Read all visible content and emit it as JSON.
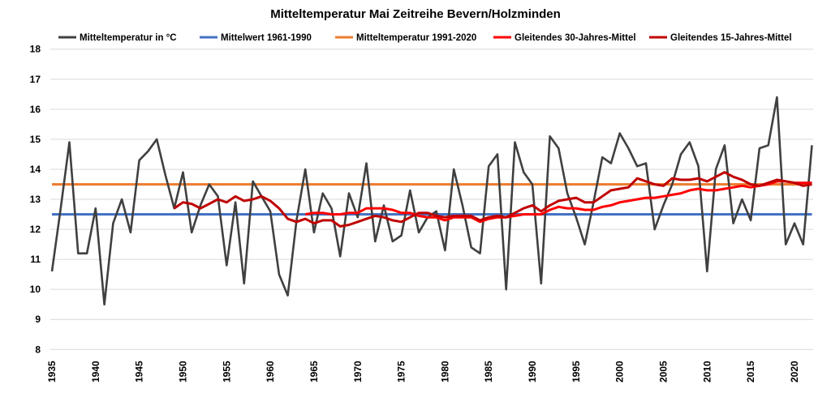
{
  "chart_data": {
    "type": "line",
    "title": "Mitteltemperatur Mai Zeitreihe Bevern/Holzminden",
    "xlabel": "",
    "ylabel": "",
    "xlim": [
      1935,
      2022
    ],
    "ylim": [
      8,
      18
    ],
    "yticks": [
      8,
      9,
      10,
      11,
      12,
      13,
      14,
      15,
      16,
      17,
      18
    ],
    "xticks": [
      1935,
      1940,
      1945,
      1950,
      1955,
      1960,
      1965,
      1970,
      1975,
      1980,
      1985,
      1990,
      1995,
      2000,
      2005,
      2010,
      2015,
      2020
    ],
    "grid": "horizontal",
    "legend_position": "top",
    "series": [
      {
        "name": "Mitteltemperatur in °C",
        "color": "#404040",
        "start_year": 1935,
        "values": [
          10.6,
          12.7,
          14.9,
          11.2,
          11.2,
          12.7,
          9.5,
          12.2,
          13.0,
          11.9,
          14.3,
          14.6,
          15.0,
          13.8,
          12.7,
          13.9,
          11.9,
          12.8,
          13.5,
          13.1,
          10.8,
          12.9,
          10.2,
          13.6,
          13.1,
          12.6,
          10.5,
          9.8,
          12.3,
          14.0,
          11.9,
          13.2,
          12.7,
          11.1,
          13.2,
          12.4,
          14.2,
          11.6,
          12.8,
          11.6,
          11.8,
          13.3,
          11.9,
          12.4,
          12.6,
          11.3,
          14.0,
          12.8,
          11.4,
          11.2,
          14.1,
          14.5,
          10.0,
          14.9,
          13.9,
          13.5,
          10.2,
          15.1,
          14.7,
          13.2,
          12.4,
          11.5,
          12.9,
          14.4,
          14.2,
          15.2,
          14.7,
          14.1,
          14.2,
          12.0,
          12.8,
          13.5,
          14.5,
          14.9,
          14.1,
          10.6,
          14.0,
          14.8,
          12.2,
          13.0,
          12.3,
          14.7,
          14.8,
          16.4,
          11.5,
          12.2,
          11.5,
          14.8
        ]
      },
      {
        "name": "Mittelwert 1961-1990",
        "color": "#4472C4",
        "start_year": 1935,
        "constant": 12.5
      },
      {
        "name": "Mitteltemperatur 1991-2020",
        "color": "#ED7D31",
        "start_year": 1935,
        "constant": 13.5
      },
      {
        "name": "Gleitendes 30-Jahres-Mittel",
        "color": "#FF0000",
        "start_year": 1964,
        "values": [
          12.5,
          12.55,
          12.55,
          12.5,
          12.5,
          12.55,
          12.55,
          12.7,
          12.7,
          12.7,
          12.65,
          12.55,
          12.55,
          12.45,
          12.4,
          12.4,
          12.3,
          12.4,
          12.4,
          12.4,
          12.25,
          12.35,
          12.4,
          12.4,
          12.45,
          12.5,
          12.5,
          12.5,
          12.65,
          12.75,
          12.7,
          12.7,
          12.65,
          12.65,
          12.75,
          12.8,
          12.9,
          12.95,
          13.0,
          13.05,
          13.05,
          13.1,
          13.15,
          13.2,
          13.3,
          13.35,
          13.3,
          13.3,
          13.35,
          13.4,
          13.45,
          13.4,
          13.45,
          13.5,
          13.6,
          13.6,
          13.55,
          13.55,
          13.55
        ]
      },
      {
        "name": "Gleitendes 15-Jahres-Mittel",
        "color": "#C00000",
        "start_year": 1949,
        "values": [
          12.7,
          12.9,
          12.85,
          12.7,
          12.85,
          13.0,
          12.9,
          13.1,
          12.95,
          13.0,
          13.1,
          12.95,
          12.7,
          12.35,
          12.25,
          12.35,
          12.2,
          12.3,
          12.3,
          12.1,
          12.15,
          12.25,
          12.35,
          12.45,
          12.4,
          12.3,
          12.25,
          12.4,
          12.55,
          12.55,
          12.45,
          12.4,
          12.45,
          12.45,
          12.45,
          12.3,
          12.4,
          12.45,
          12.4,
          12.55,
          12.7,
          12.8,
          12.6,
          12.8,
          12.95,
          13.0,
          13.05,
          12.9,
          12.9,
          13.1,
          13.3,
          13.35,
          13.4,
          13.7,
          13.6,
          13.5,
          13.45,
          13.7,
          13.65,
          13.65,
          13.7,
          13.6,
          13.75,
          13.9,
          13.75,
          13.65,
          13.5,
          13.45,
          13.55,
          13.65,
          13.6,
          13.55,
          13.45,
          13.5
        ]
      }
    ]
  }
}
